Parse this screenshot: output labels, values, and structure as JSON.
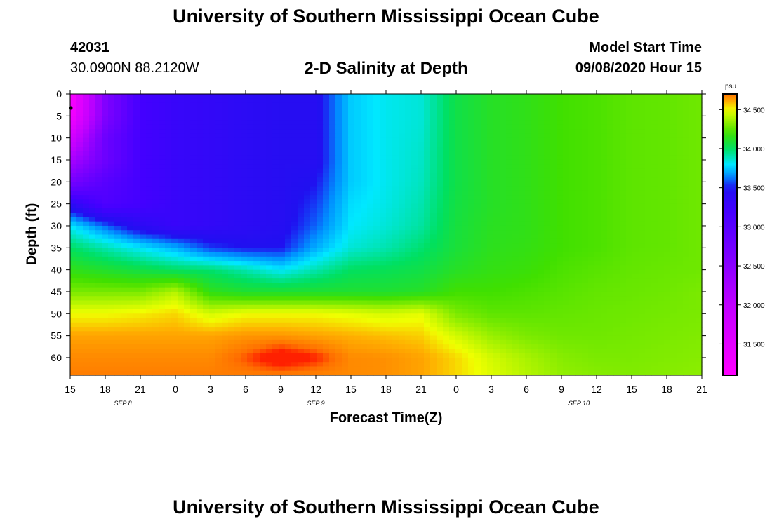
{
  "header": {
    "title": "University of Southern Mississippi Ocean Cube",
    "station_id": "42031",
    "station_coords": "30.0900N 88.2120W",
    "plot_title": "2-D Salinity at Depth",
    "start_label": "Model Start Time",
    "start_value": "09/08/2020 Hour 15"
  },
  "footer": {
    "title": "University of Southern Mississippi Ocean Cube"
  },
  "chart_data": {
    "type": "heatmap",
    "title": "2-D Salinity at Depth",
    "xlabel": "Forecast Time(Z)",
    "ylabel": "Depth (ft)",
    "units": "psu",
    "x_hours": [
      0,
      3,
      6,
      9,
      12,
      15,
      18,
      21,
      24,
      27,
      30,
      33,
      36,
      39,
      42,
      45,
      48,
      51,
      54
    ],
    "x_tick_labels": [
      "15",
      "18",
      "21",
      "0",
      "3",
      "6",
      "9",
      "12",
      "15",
      "18",
      "21",
      "0",
      "3",
      "6",
      "9",
      "12",
      "15",
      "18",
      "21"
    ],
    "date_labels": [
      {
        "label": "SEP 8",
        "hour": 4.5
      },
      {
        "label": "SEP 9",
        "hour": 21
      },
      {
        "label": "SEP 10",
        "hour": 43.5
      }
    ],
    "xlim": [
      0,
      54
    ],
    "y_ticks": [
      0,
      5,
      10,
      15,
      20,
      25,
      30,
      35,
      40,
      45,
      50,
      55,
      60
    ],
    "ylim": [
      0,
      64
    ],
    "colorbar": {
      "ticks": [
        31.5,
        32.0,
        32.5,
        33.0,
        33.5,
        34.0,
        34.5
      ],
      "tick_labels": [
        "31.500",
        "32.000",
        "32.500",
        "33.000",
        "33.500",
        "34.000",
        "34.500"
      ],
      "range": [
        31.1,
        34.7
      ]
    },
    "colormap": [
      {
        "v": 31.1,
        "c": "#ff00ff"
      },
      {
        "v": 32.0,
        "c": "#c000ff"
      },
      {
        "v": 32.6,
        "c": "#8000ff"
      },
      {
        "v": 33.2,
        "c": "#4400ff"
      },
      {
        "v": 33.5,
        "c": "#2010f0"
      },
      {
        "v": 33.65,
        "c": "#0090ff"
      },
      {
        "v": 33.8,
        "c": "#00e8ff"
      },
      {
        "v": 34.0,
        "c": "#00e060"
      },
      {
        "v": 34.2,
        "c": "#40e000"
      },
      {
        "v": 34.5,
        "c": "#f0ff00"
      },
      {
        "v": 34.6,
        "c": "#ffb000"
      },
      {
        "v": 34.7,
        "c": "#ff7000"
      },
      {
        "v": 34.75,
        "c": "#ff2000"
      }
    ],
    "grid_depths": [
      0,
      5,
      10,
      15,
      20,
      25,
      30,
      35,
      40,
      45,
      50,
      55,
      60,
      64
    ],
    "grid_values": [
      [
        31.1,
        32.6,
        33.2,
        33.3,
        33.35,
        33.4,
        33.45,
        33.45,
        33.75,
        33.82,
        33.85,
        34.05,
        34.12,
        34.15,
        34.2,
        34.22,
        34.25,
        34.26,
        34.28
      ],
      [
        31.2,
        32.6,
        33.2,
        33.3,
        33.35,
        33.4,
        33.45,
        33.45,
        33.75,
        33.82,
        33.85,
        34.05,
        34.12,
        34.15,
        34.2,
        34.22,
        34.25,
        34.26,
        34.28
      ],
      [
        31.7,
        32.8,
        33.2,
        33.3,
        33.35,
        33.4,
        33.45,
        33.45,
        33.75,
        33.82,
        33.86,
        34.05,
        34.12,
        34.15,
        34.2,
        34.22,
        34.25,
        34.26,
        34.28
      ],
      [
        32.2,
        32.8,
        33.2,
        33.3,
        33.35,
        33.4,
        33.45,
        33.45,
        33.75,
        33.82,
        33.87,
        34.05,
        34.12,
        34.15,
        34.2,
        34.22,
        34.25,
        34.26,
        34.28
      ],
      [
        32.7,
        33.0,
        33.2,
        33.3,
        33.35,
        33.4,
        33.45,
        33.5,
        33.75,
        33.82,
        33.88,
        34.05,
        34.12,
        34.15,
        34.2,
        34.22,
        34.25,
        34.26,
        34.28
      ],
      [
        33.4,
        33.1,
        33.2,
        33.3,
        33.35,
        33.4,
        33.45,
        33.55,
        33.78,
        33.83,
        33.9,
        34.06,
        34.12,
        34.15,
        34.2,
        34.22,
        34.25,
        34.26,
        34.28
      ],
      [
        33.8,
        33.6,
        33.4,
        33.3,
        33.35,
        33.4,
        33.45,
        33.6,
        33.8,
        33.85,
        33.92,
        34.07,
        34.13,
        34.15,
        34.2,
        34.22,
        34.25,
        34.26,
        34.28
      ],
      [
        34.0,
        33.9,
        33.8,
        33.7,
        33.55,
        33.5,
        33.5,
        33.7,
        33.85,
        33.9,
        33.98,
        34.08,
        34.14,
        34.16,
        34.2,
        34.22,
        34.25,
        34.26,
        34.28
      ],
      [
        34.15,
        34.1,
        34.05,
        34.0,
        33.98,
        33.9,
        33.8,
        33.9,
        34.0,
        34.02,
        34.05,
        34.12,
        34.16,
        34.18,
        34.22,
        34.24,
        34.26,
        34.27,
        34.28
      ],
      [
        34.3,
        34.3,
        34.3,
        34.4,
        34.15,
        34.1,
        34.1,
        34.1,
        34.1,
        34.1,
        34.12,
        34.2,
        34.2,
        34.22,
        34.24,
        34.26,
        34.27,
        34.28,
        34.3
      ],
      [
        34.5,
        34.5,
        34.52,
        34.55,
        34.45,
        34.5,
        34.5,
        34.5,
        34.48,
        34.45,
        34.48,
        34.3,
        34.25,
        34.25,
        34.26,
        34.27,
        34.28,
        34.29,
        34.3
      ],
      [
        34.62,
        34.62,
        34.62,
        34.62,
        34.62,
        34.64,
        34.64,
        34.62,
        34.6,
        34.58,
        34.56,
        34.45,
        34.35,
        34.3,
        34.28,
        34.28,
        34.29,
        34.3,
        34.31
      ],
      [
        34.66,
        34.66,
        34.66,
        34.66,
        34.66,
        34.72,
        34.8,
        34.75,
        34.66,
        34.65,
        34.62,
        34.55,
        34.45,
        34.38,
        34.32,
        34.3,
        34.3,
        34.31,
        34.32
      ],
      [
        34.68,
        34.68,
        34.68,
        34.68,
        34.68,
        34.68,
        34.68,
        34.67,
        34.66,
        34.65,
        34.62,
        34.55,
        34.47,
        34.4,
        34.34,
        34.32,
        34.31,
        34.32,
        34.33
      ]
    ]
  }
}
